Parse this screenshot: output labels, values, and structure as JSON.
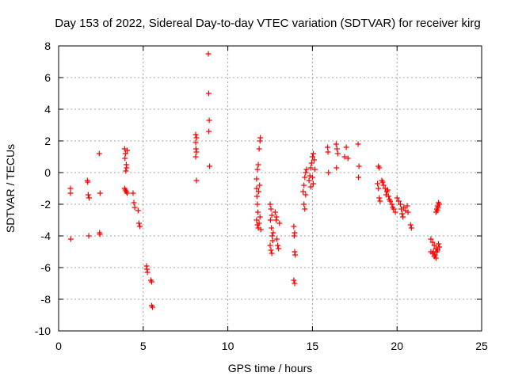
{
  "chart_data": {
    "type": "scatter",
    "title": "Day 153 of 2022, Sidereal Day-to-day VTEC variation (SDTVAR) for receiver kirg",
    "xlabel": "GPS time / hours",
    "ylabel": "SDTVAR / TECUs",
    "xlim": [
      0,
      25
    ],
    "ylim": [
      -10,
      8
    ],
    "xticks": [
      0,
      5,
      10,
      15,
      20,
      25
    ],
    "yticks": [
      -10,
      -8,
      -6,
      -4,
      -2,
      0,
      2,
      4,
      6,
      8
    ],
    "grid": true,
    "marker": "plus",
    "color": "#ff0000",
    "series": [
      {
        "name": "SDTVAR",
        "points": [
          [
            0.7,
            -1.0
          ],
          [
            0.7,
            -1.3
          ],
          [
            0.72,
            -4.2
          ],
          [
            1.7,
            -0.5
          ],
          [
            1.72,
            -0.6
          ],
          [
            1.75,
            -1.4
          ],
          [
            1.8,
            -1.6
          ],
          [
            1.78,
            -4.0
          ],
          [
            2.4,
            1.2
          ],
          [
            2.45,
            -1.3
          ],
          [
            2.42,
            -3.8
          ],
          [
            2.44,
            -3.9
          ],
          [
            3.9,
            1.5
          ],
          [
            3.95,
            1.2
          ],
          [
            3.92,
            0.9
          ],
          [
            4.0,
            0.5
          ],
          [
            4.02,
            0.3
          ],
          [
            3.97,
            0.1
          ],
          [
            4.05,
            1.4
          ],
          [
            3.9,
            -1.0
          ],
          [
            3.95,
            -1.1
          ],
          [
            4.0,
            -1.2
          ],
          [
            4.05,
            -1.3
          ],
          [
            4.4,
            -1.3
          ],
          [
            4.45,
            -1.9
          ],
          [
            4.5,
            -2.2
          ],
          [
            4.7,
            -2.4
          ],
          [
            4.75,
            -3.2
          ],
          [
            4.8,
            -3.4
          ],
          [
            5.2,
            -5.9
          ],
          [
            5.22,
            -6.1
          ],
          [
            5.25,
            -6.3
          ],
          [
            5.45,
            -6.8
          ],
          [
            5.5,
            -6.9
          ],
          [
            5.5,
            -8.4
          ],
          [
            5.55,
            -8.5
          ],
          [
            8.1,
            2.4
          ],
          [
            8.15,
            2.2
          ],
          [
            8.1,
            1.9
          ],
          [
            8.12,
            1.5
          ],
          [
            8.15,
            1.3
          ],
          [
            8.1,
            1.0
          ],
          [
            8.15,
            -0.5
          ],
          [
            8.85,
            7.5
          ],
          [
            8.87,
            5.0
          ],
          [
            8.9,
            3.3
          ],
          [
            8.88,
            2.6
          ],
          [
            8.92,
            0.4
          ],
          [
            11.7,
            -0.4
          ],
          [
            11.75,
            0.2
          ],
          [
            11.8,
            0.5
          ],
          [
            11.85,
            1.5
          ],
          [
            11.9,
            2.0
          ],
          [
            11.92,
            2.2
          ],
          [
            11.7,
            -1.0
          ],
          [
            11.72,
            -1.5
          ],
          [
            11.75,
            -2.0
          ],
          [
            11.78,
            -2.5
          ],
          [
            11.7,
            -3.0
          ],
          [
            11.75,
            -3.3
          ],
          [
            11.8,
            -3.5
          ],
          [
            11.85,
            -3.2
          ],
          [
            11.9,
            -2.8
          ],
          [
            11.95,
            -3.6
          ],
          [
            11.82,
            -1.2
          ],
          [
            11.88,
            -0.8
          ],
          [
            12.5,
            -2.0
          ],
          [
            12.55,
            -2.3
          ],
          [
            12.6,
            -2.7
          ],
          [
            12.52,
            -3.0
          ],
          [
            12.58,
            -3.5
          ],
          [
            12.62,
            -4.0
          ],
          [
            12.65,
            -4.3
          ],
          [
            12.5,
            -4.6
          ],
          [
            12.55,
            -4.9
          ],
          [
            12.6,
            -5.1
          ],
          [
            12.68,
            -3.8
          ],
          [
            12.8,
            -2.5
          ],
          [
            12.85,
            -3.0
          ],
          [
            12.9,
            -4.2
          ],
          [
            12.95,
            -4.6
          ],
          [
            13.0,
            -4.8
          ],
          [
            13.05,
            -3.2
          ],
          [
            12.88,
            -2.8
          ],
          [
            13.9,
            -3.4
          ],
          [
            13.95,
            -3.8
          ],
          [
            13.92,
            -4.0
          ],
          [
            13.95,
            -5.0
          ],
          [
            13.98,
            -5.2
          ],
          [
            13.9,
            -6.8
          ],
          [
            13.95,
            -7.0
          ],
          [
            14.5,
            -2.0
          ],
          [
            14.55,
            -2.3
          ],
          [
            14.6,
            -1.4
          ],
          [
            14.45,
            -1.2
          ],
          [
            14.5,
            -0.8
          ],
          [
            14.55,
            -0.3
          ],
          [
            14.6,
            0.0
          ],
          [
            14.65,
            0.2
          ],
          [
            14.8,
            -0.5
          ],
          [
            14.85,
            -0.2
          ],
          [
            14.9,
            0.3
          ],
          [
            14.95,
            0.6
          ],
          [
            15.0,
            1.0
          ],
          [
            15.05,
            1.2
          ],
          [
            15.1,
            0.8
          ],
          [
            15.0,
            -0.3
          ],
          [
            15.05,
            -0.7
          ],
          [
            14.9,
            -0.9
          ],
          [
            15.15,
            0.2
          ],
          [
            15.9,
            1.6
          ],
          [
            15.92,
            1.3
          ],
          [
            15.95,
            0.0
          ],
          [
            16.4,
            1.8
          ],
          [
            16.45,
            1.5
          ],
          [
            16.5,
            1.2
          ],
          [
            16.42,
            0.3
          ],
          [
            16.9,
            1.0
          ],
          [
            17.0,
            1.6
          ],
          [
            17.1,
            0.9
          ],
          [
            17.7,
            1.8
          ],
          [
            17.75,
            0.4
          ],
          [
            17.72,
            -0.3
          ],
          [
            18.9,
            0.4
          ],
          [
            18.95,
            0.3
          ],
          [
            18.85,
            -0.7
          ],
          [
            18.9,
            -1.0
          ],
          [
            18.95,
            -1.6
          ],
          [
            19.0,
            -1.8
          ],
          [
            19.1,
            -0.5
          ],
          [
            19.2,
            -0.8
          ],
          [
            19.3,
            -1.0
          ],
          [
            19.4,
            -1.2
          ],
          [
            19.5,
            -1.5
          ],
          [
            19.6,
            -1.8
          ],
          [
            19.7,
            -2.0
          ],
          [
            19.8,
            -2.3
          ],
          [
            19.9,
            -2.5
          ],
          [
            19.35,
            -1.4
          ],
          [
            19.55,
            -1.7
          ],
          [
            19.75,
            -2.2
          ],
          [
            19.15,
            -0.6
          ],
          [
            19.45,
            -1.1
          ],
          [
            20.0,
            -1.6
          ],
          [
            20.1,
            -1.8
          ],
          [
            20.2,
            -2.0
          ],
          [
            20.25,
            -2.3
          ],
          [
            20.3,
            -2.6
          ],
          [
            20.35,
            -2.8
          ],
          [
            20.4,
            -2.2
          ],
          [
            20.5,
            -2.4
          ],
          [
            20.6,
            -2.1
          ],
          [
            20.65,
            -2.5
          ],
          [
            20.8,
            -3.3
          ],
          [
            20.85,
            -3.5
          ],
          [
            22.0,
            -4.2
          ],
          [
            22.1,
            -4.4
          ],
          [
            22.2,
            -4.6
          ],
          [
            22.3,
            -4.8
          ],
          [
            22.4,
            -4.9
          ],
          [
            22.5,
            -4.7
          ],
          [
            22.45,
            -4.5
          ],
          [
            22.35,
            -5.0
          ],
          [
            22.0,
            -5.0
          ],
          [
            22.1,
            -5.1
          ],
          [
            22.2,
            -5.3
          ],
          [
            22.3,
            -5.4
          ],
          [
            22.25,
            -5.2
          ],
          [
            22.15,
            -5.0
          ],
          [
            22.3,
            -2.5
          ],
          [
            22.35,
            -2.3
          ],
          [
            22.4,
            -2.1
          ],
          [
            22.45,
            -1.9
          ],
          [
            22.5,
            -2.0
          ],
          [
            22.38,
            -2.4
          ],
          [
            22.42,
            -2.2
          ]
        ]
      }
    ]
  }
}
